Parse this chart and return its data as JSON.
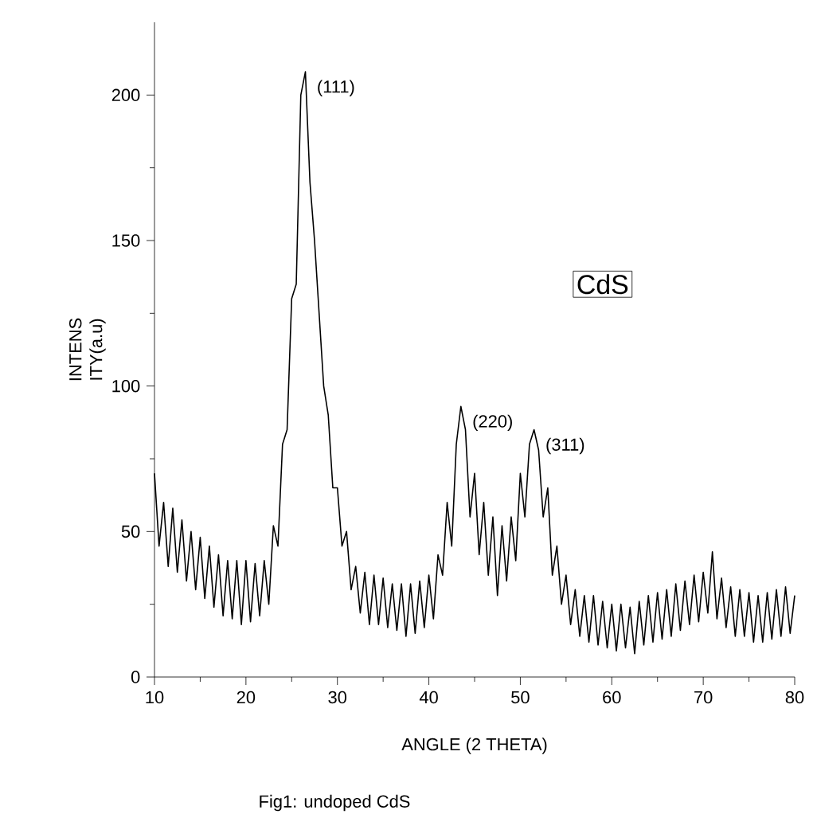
{
  "chart_data": {
    "type": "line",
    "xlabel": "ANGLE (2 THETA)",
    "ylabel": "INTENS ITY(a.u)",
    "xlim": [
      10,
      80
    ],
    "ylim": [
      0,
      225
    ],
    "xticks": [
      10,
      20,
      30,
      40,
      50,
      60,
      70,
      80
    ],
    "yticks": [
      0,
      50,
      100,
      150,
      200
    ],
    "line_style": "solid",
    "marker": "none",
    "annotations": [
      {
        "text": "(111)",
        "x": 26.5,
        "y": 208
      },
      {
        "text": "(220)",
        "x": 43.5,
        "y": 93
      },
      {
        "text": "(311)",
        "x": 51.5,
        "y": 85
      },
      "CdS",
      "Fig1: undoped CdS"
    ],
    "series": [
      {
        "color": "#000000",
        "x": [
          10,
          10.5,
          11,
          11.5,
          12,
          12.5,
          13,
          13.5,
          14,
          14.5,
          15,
          15.5,
          16,
          16.5,
          17,
          17.5,
          18,
          18.5,
          19,
          19.5,
          20,
          20.5,
          21,
          21.5,
          22,
          22.5,
          23,
          23.5,
          24,
          24.5,
          25,
          25.5,
          26,
          26.5,
          27,
          27.5,
          28,
          28.5,
          29,
          29.5,
          30,
          30.5,
          31,
          31.5,
          32,
          32.5,
          33,
          33.5,
          34,
          34.5,
          35,
          35.5,
          36,
          36.5,
          37,
          37.5,
          38,
          38.5,
          39,
          39.5,
          40,
          40.5,
          41,
          41.5,
          42,
          42.5,
          43,
          43.5,
          44,
          44.5,
          45,
          45.5,
          46,
          46.5,
          47,
          47.5,
          48,
          48.5,
          49,
          49.5,
          50,
          50.5,
          51,
          51.5,
          52,
          52.5,
          53,
          53.5,
          54,
          54.5,
          55,
          55.5,
          56,
          56.5,
          57,
          57.5,
          58,
          58.5,
          59,
          59.5,
          60,
          60.5,
          61,
          61.5,
          62,
          62.5,
          63,
          63.5,
          64,
          64.5,
          65,
          65.5,
          66,
          66.5,
          67,
          67.5,
          68,
          68.5,
          69,
          69.5,
          70,
          70.5,
          71,
          71.5,
          72,
          72.5,
          73,
          73.5,
          74,
          74.5,
          75,
          75.5,
          76,
          76.5,
          77,
          77.5,
          78,
          78.5,
          79,
          79.5,
          80
        ],
        "values": [
          70,
          45,
          60,
          38,
          58,
          36,
          54,
          33,
          50,
          30,
          48,
          27,
          45,
          24,
          42,
          21,
          40,
          20,
          40,
          18,
          40,
          19,
          39,
          21,
          40,
          25,
          52,
          45,
          80,
          85,
          130,
          135,
          200,
          208,
          170,
          150,
          125,
          100,
          90,
          65,
          65,
          45,
          50,
          30,
          38,
          22,
          36,
          18,
          35,
          18,
          34,
          17,
          32,
          16,
          32,
          14,
          32,
          15,
          33,
          17,
          35,
          20,
          42,
          35,
          60,
          45,
          80,
          93,
          85,
          55,
          70,
          42,
          60,
          35,
          55,
          28,
          52,
          33,
          55,
          40,
          70,
          55,
          80,
          85,
          78,
          55,
          65,
          35,
          45,
          25,
          35,
          18,
          30,
          14,
          28,
          12,
          28,
          11,
          26,
          10,
          25,
          9,
          25,
          10,
          24,
          8,
          26,
          11,
          28,
          12,
          29,
          13,
          30,
          14,
          32,
          16,
          33,
          18,
          35,
          19,
          36,
          22,
          43,
          20,
          34,
          17,
          31,
          14,
          30,
          14,
          29,
          12,
          28,
          12,
          29,
          13,
          30,
          14,
          31,
          15,
          28
        ]
      }
    ]
  }
}
